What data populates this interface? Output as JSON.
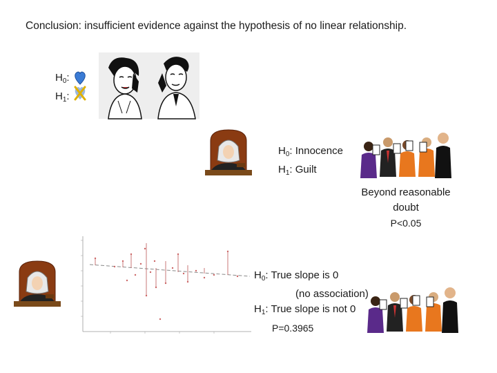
{
  "conclusion": "Conclusion: insufficient evidence against the hypothesis of no linear relationship.",
  "phone_block": {
    "h0_label": "H",
    "h0_sub": "0",
    "h1_label": "H",
    "h1_sub": "1",
    "colon": ":",
    "heart_color": "#3a7bd5",
    "cross_color": "#e0b000"
  },
  "trial_block": {
    "h0_prefix": "H",
    "h0_sub": "0",
    "h0_text": ": Innocence",
    "h1_prefix": "H",
    "h1_sub": "1",
    "h1_text": ": Guilt",
    "line1": "Beyond reasonable",
    "line2": "doubt",
    "pvalue": "P<0.05"
  },
  "regression_block": {
    "h0_prefix": "H",
    "h0_sub": "0",
    "h0_text": ": True slope is 0",
    "h0_note": "(no association)",
    "h1_prefix": "H",
    "h1_sub": "1",
    "h1_text": ": True slope is not 0",
    "pvalue": "P=0.3965"
  }
}
